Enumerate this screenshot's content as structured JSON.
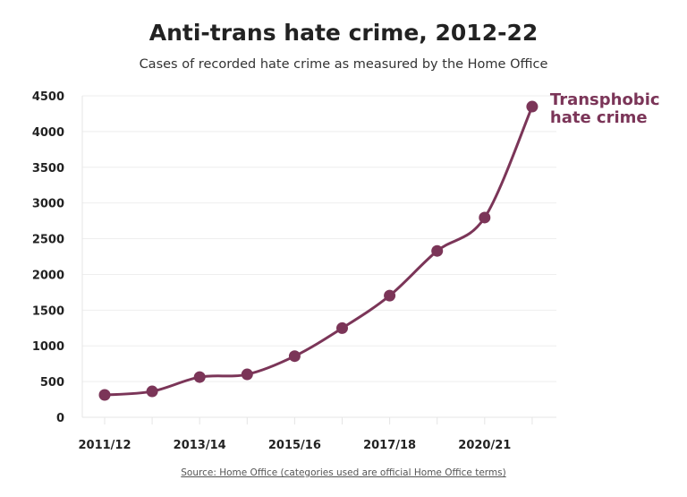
{
  "chart_data": {
    "type": "line",
    "title": "Anti-trans hate crime, 2012-22",
    "subtitle": "Cases of recorded hate crime as measured by the Home Office",
    "source": "Source: Home Office (categories used are official Home Office terms)",
    "categories": [
      "2011/12",
      "",
      "2013/14",
      "",
      "2015/16",
      "",
      "2017/18",
      "",
      "2020/21",
      ""
    ],
    "series": [
      {
        "name": "Transphobic hate crime",
        "label_lines": [
          "Transphobic",
          "hate crime"
        ],
        "color": "#7b3558",
        "values": [
          313,
          363,
          563,
          601,
          856,
          1248,
          1703,
          2329,
          2796,
          4349
        ]
      }
    ],
    "yticks": [
      0,
      500,
      1000,
      1500,
      2000,
      2500,
      3000,
      3500,
      4000,
      4500
    ],
    "ylim": [
      0,
      4500
    ],
    "grid": true,
    "legend": "direct label at top-right end of line"
  }
}
